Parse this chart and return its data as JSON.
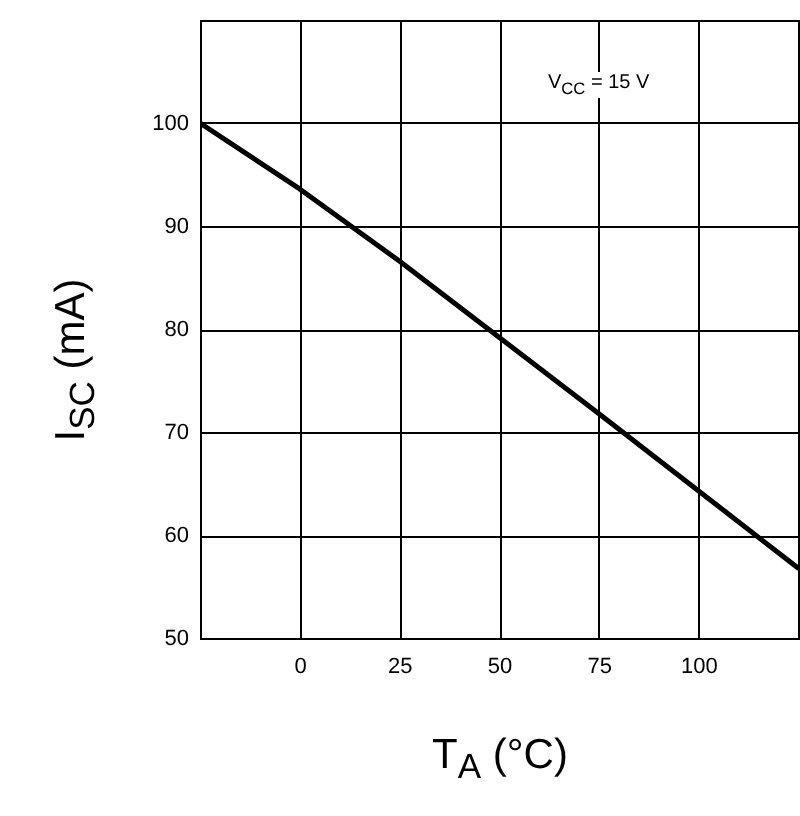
{
  "chart_data": {
    "type": "line",
    "xlabel": "T$_{A}$ (°C)",
    "ylabel": "I$_{SC}$ (mA)",
    "annotations": [
      "V$_{CC}$ = 15 V"
    ],
    "x": [
      -25,
      0,
      25,
      50,
      75,
      100,
      125
    ],
    "series": [
      {
        "color": "#000000",
        "values": [
          100,
          93.6,
          86.6,
          79.2,
          71.8,
          64.3,
          56.8
        ]
      }
    ],
    "xlim": [
      -25,
      125
    ],
    "xticks": [
      0,
      25,
      50,
      75,
      100
    ],
    "ylim": [
      50,
      110
    ],
    "yticks": [
      50,
      60,
      70,
      80,
      90,
      100
    ],
    "grid": true
  }
}
